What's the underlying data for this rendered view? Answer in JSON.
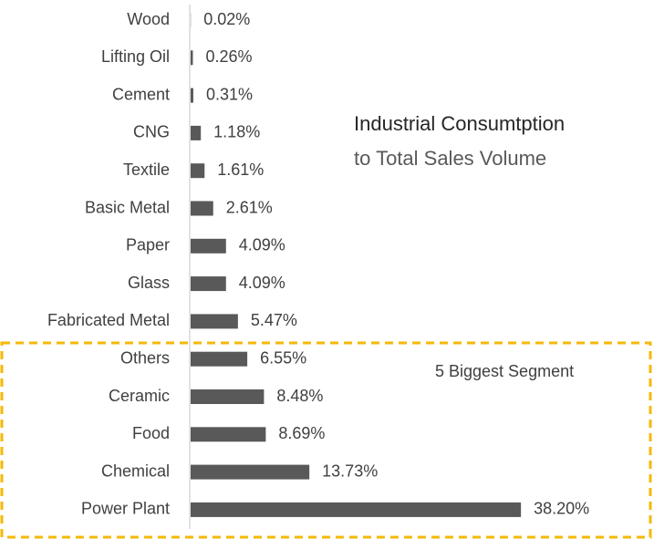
{
  "chart_data": {
    "type": "bar",
    "orientation": "horizontal",
    "title": "Industrial Consumtption",
    "subtitle": "to Total Sales Volume",
    "annotation": "5 Biggest Segment",
    "categories": [
      "Wood",
      "Lifting Oil",
      "Cement",
      "CNG",
      "Textile",
      "Basic Metal",
      "Paper",
      "Glass",
      "Fabricated Metal",
      "Others",
      "Ceramic",
      "Food",
      "Chemical",
      "Power Plant"
    ],
    "values": [
      0.02,
      0.26,
      0.31,
      1.18,
      1.61,
      2.61,
      4.09,
      4.09,
      5.47,
      6.55,
      8.48,
      8.69,
      13.73,
      38.2
    ],
    "value_labels": [
      "0.02%",
      "0.26%",
      "0.31%",
      "1.18%",
      "1.61%",
      "2.61%",
      "4.09%",
      "4.09%",
      "5.47%",
      "6.55%",
      "8.48%",
      "8.69%",
      "13.73%",
      "38.20%"
    ],
    "color": "#595959",
    "highlight_color": "#f5b80a"
  }
}
